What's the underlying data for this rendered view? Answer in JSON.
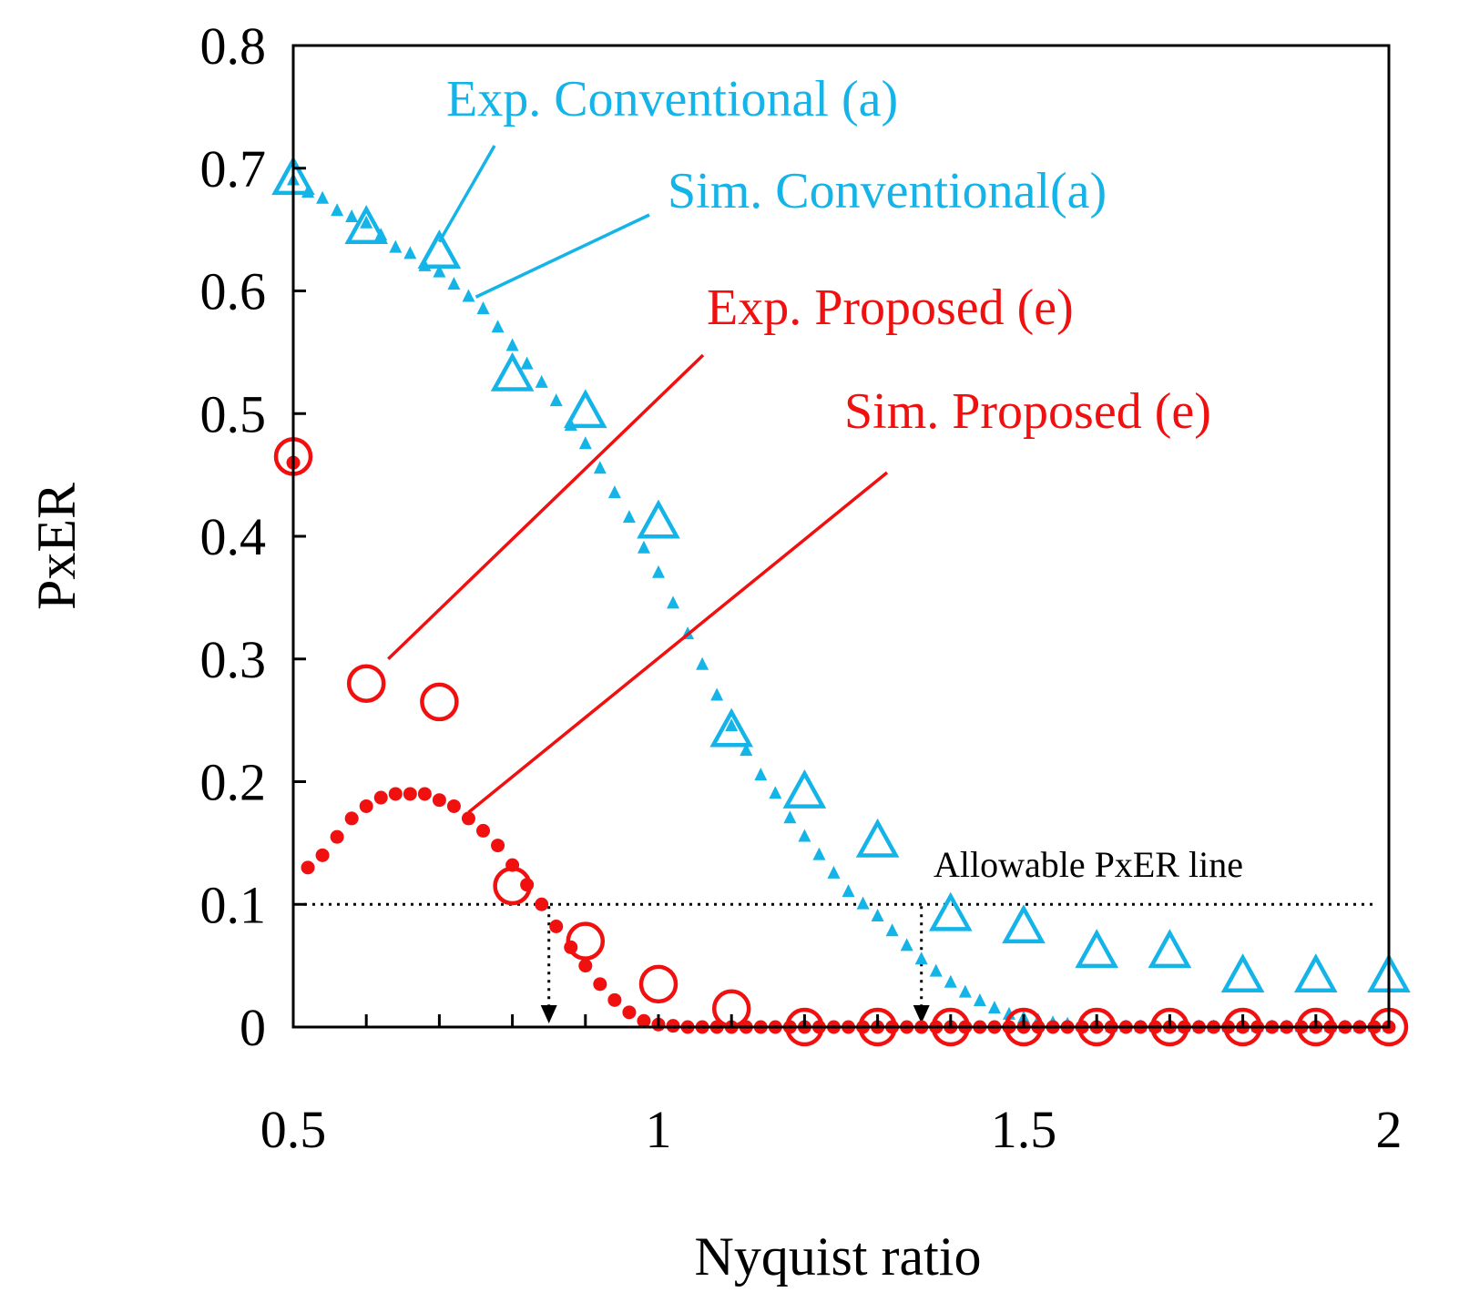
{
  "colors": {
    "conventional": "#14b4e8",
    "proposed": "#f01010",
    "axis": "#000000"
  },
  "chart_data": {
    "type": "scatter",
    "xlabel": "Nyquist ratio",
    "ylabel": "PxER",
    "xlim": [
      0.5,
      2
    ],
    "ylim": [
      0,
      0.8
    ],
    "xticks": [
      "0.5",
      "1",
      "1.5",
      "2"
    ],
    "xtick_values": [
      0.5,
      1,
      1.5,
      2
    ],
    "yticks": [
      "0",
      "0.1",
      "0.2",
      "0.3",
      "0.4",
      "0.5",
      "0.6",
      "0.7",
      "0.8"
    ],
    "ytick_values": [
      0,
      0.1,
      0.2,
      0.3,
      0.4,
      0.5,
      0.6,
      0.7,
      0.8
    ],
    "minor_xticks": [
      0.6,
      0.7,
      0.8,
      0.9,
      1.1,
      1.2,
      1.3,
      1.4,
      1.6,
      1.7,
      1.8,
      1.9
    ],
    "allowable_line": {
      "label": "Allowable PxER line",
      "y": 0.1
    },
    "drop_arrows": [
      0.85,
      1.36
    ],
    "series": [
      {
        "name": "Exp. Conventional (a)",
        "marker": "triangle",
        "color": "#14b4e8",
        "x": [
          0.5,
          0.6,
          0.7,
          0.8,
          0.9,
          1.0,
          1.1,
          1.2,
          1.3,
          1.4,
          1.5,
          1.6,
          1.7,
          1.8,
          1.9,
          2.0
        ],
        "y": [
          0.69,
          0.65,
          0.63,
          0.53,
          0.5,
          0.41,
          0.24,
          0.19,
          0.15,
          0.09,
          0.08,
          0.06,
          0.06,
          0.04,
          0.04,
          0.04
        ]
      },
      {
        "name": "Sim. Conventional(a)",
        "marker": "small-triangle",
        "color": "#14b4e8",
        "x": [
          0.5,
          0.52,
          0.54,
          0.56,
          0.58,
          0.6,
          0.62,
          0.64,
          0.66,
          0.68,
          0.7,
          0.72,
          0.74,
          0.76,
          0.78,
          0.8,
          0.82,
          0.84,
          0.86,
          0.88,
          0.9,
          0.92,
          0.94,
          0.96,
          0.98,
          1.0,
          1.02,
          1.04,
          1.06,
          1.08,
          1.1,
          1.12,
          1.14,
          1.16,
          1.18,
          1.2,
          1.22,
          1.24,
          1.26,
          1.28,
          1.3,
          1.32,
          1.34,
          1.36,
          1.38,
          1.4,
          1.42,
          1.44,
          1.46,
          1.48,
          1.5,
          1.52,
          1.54,
          1.56,
          1.58,
          1.6,
          1.62,
          1.64,
          1.66,
          1.68,
          1.7,
          1.72,
          1.74,
          1.76,
          1.78,
          1.8,
          1.82,
          1.84,
          1.86,
          1.88,
          1.9,
          1.92,
          1.94,
          1.96,
          1.98,
          2.0
        ],
        "y": [
          0.69,
          0.68,
          0.675,
          0.665,
          0.66,
          0.655,
          0.645,
          0.635,
          0.63,
          0.62,
          0.615,
          0.605,
          0.595,
          0.585,
          0.57,
          0.555,
          0.54,
          0.525,
          0.51,
          0.49,
          0.475,
          0.455,
          0.435,
          0.415,
          0.39,
          0.37,
          0.345,
          0.32,
          0.295,
          0.27,
          0.245,
          0.225,
          0.205,
          0.19,
          0.17,
          0.155,
          0.14,
          0.125,
          0.11,
          0.1,
          0.09,
          0.078,
          0.066,
          0.055,
          0.045,
          0.036,
          0.028,
          0.021,
          0.015,
          0.01,
          0.007,
          0.005,
          0.003,
          0.002,
          0.001,
          0.001,
          0.0,
          0.0,
          0.0,
          0.0,
          0.0,
          0.0,
          0.0,
          0.0,
          0.0,
          0.0,
          0.0,
          0.0,
          0.0,
          0.0,
          0.0,
          0.0,
          0.0,
          0.0,
          0.0,
          0.0
        ]
      },
      {
        "name": "Exp. Proposed (e)",
        "marker": "circle",
        "color": "#f01010",
        "x": [
          0.5,
          0.6,
          0.7,
          0.8,
          0.9,
          1.0,
          1.1,
          1.2,
          1.3,
          1.4,
          1.5,
          1.6,
          1.7,
          1.8,
          1.9,
          2.0
        ],
        "y": [
          0.465,
          0.28,
          0.265,
          0.115,
          0.07,
          0.035,
          0.015,
          0.0,
          0.0,
          0.0,
          0.0,
          0.0,
          0.0,
          0.0,
          0.0,
          0.0
        ]
      },
      {
        "name": "Sim. Proposed (e)",
        "marker": "dot",
        "color": "#f01010",
        "x": [
          0.5,
          0.52,
          0.54,
          0.56,
          0.58,
          0.6,
          0.62,
          0.64,
          0.66,
          0.68,
          0.7,
          0.72,
          0.74,
          0.76,
          0.78,
          0.8,
          0.82,
          0.84,
          0.86,
          0.88,
          0.9,
          0.92,
          0.94,
          0.96,
          0.98,
          1.0,
          1.02,
          1.04,
          1.06,
          1.08,
          1.1,
          1.12,
          1.14,
          1.16,
          1.18,
          1.2,
          1.22,
          1.24,
          1.26,
          1.28,
          1.3,
          1.32,
          1.34,
          1.36,
          1.38,
          1.4,
          1.42,
          1.44,
          1.46,
          1.48,
          1.5,
          1.52,
          1.54,
          1.56,
          1.58,
          1.6,
          1.62,
          1.64,
          1.66,
          1.68,
          1.7,
          1.72,
          1.74,
          1.76,
          1.78,
          1.8,
          1.82,
          1.84,
          1.86,
          1.88,
          1.9,
          1.92,
          1.94,
          1.96,
          1.98,
          2.0
        ],
        "y": [
          0.46,
          0.13,
          0.14,
          0.155,
          0.17,
          0.18,
          0.187,
          0.19,
          0.19,
          0.19,
          0.185,
          0.18,
          0.17,
          0.16,
          0.148,
          0.132,
          0.116,
          0.1,
          0.082,
          0.065,
          0.05,
          0.035,
          0.022,
          0.012,
          0.005,
          0.002,
          0.001,
          0.0,
          0.0,
          0.0,
          0.0,
          0.0,
          0.0,
          0.0,
          0.0,
          0.0,
          0.0,
          0.0,
          0.0,
          0.0,
          0.0,
          0.0,
          0.0,
          0.0,
          0.0,
          0.0,
          0.0,
          0.0,
          0.0,
          0.0,
          0.0,
          0.0,
          0.0,
          0.0,
          0.0,
          0.0,
          0.0,
          0.0,
          0.0,
          0.0,
          0.0,
          0.0,
          0.0,
          0.0,
          0.0,
          0.0,
          0.0,
          0.0,
          0.0,
          0.0,
          0.0,
          0.0,
          0.0,
          0.0,
          0.0,
          0.0
        ]
      }
    ],
    "annotations": [
      {
        "text": "Exp. Conventional (a)",
        "color": "#14b4e8",
        "points_to": [
          0.7,
          0.64
        ]
      },
      {
        "text": "Sim. Conventional(a)",
        "color": "#14b4e8",
        "points_to": [
          0.75,
          0.595
        ]
      },
      {
        "text": "Exp. Proposed (e)",
        "color": "#f01010",
        "points_to": [
          0.63,
          0.3
        ]
      },
      {
        "text": "Sim. Proposed (e)",
        "color": "#f01010",
        "points_to": [
          0.74,
          0.175
        ]
      }
    ]
  }
}
